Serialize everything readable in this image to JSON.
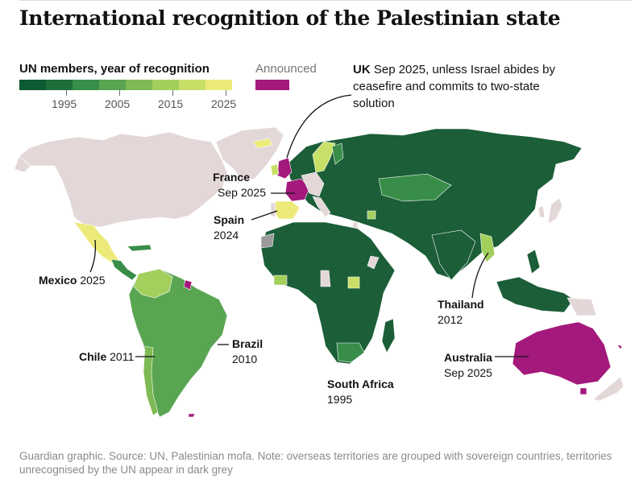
{
  "title": "International recognition of the Palestinian state",
  "legend": {
    "title": "UN members, year of recognition",
    "swatch_colors": [
      "#0e5a32",
      "#1e6e3c",
      "#388e48",
      "#5aa552",
      "#7dba54",
      "#a3cf5d",
      "#c9e068",
      "#eceb79"
    ],
    "tick_labels": [
      "1995",
      "2005",
      "2015",
      "2025"
    ],
    "announced_label": "Announced",
    "announced_color": "#a3197c"
  },
  "colors": {
    "not_recognised": "#e3d7d8",
    "unrecognised_territory": "#9a9a9a",
    "old_recognition": "#1b5e38",
    "announced": "#a3197c"
  },
  "uk_note": {
    "country": "UK",
    "text": "Sep 2025, unless Israel abides by ceasefire and commits to two-state solution"
  },
  "annotations": {
    "france": {
      "name": "France",
      "detail": "Sep 2025"
    },
    "spain": {
      "name": "Spain",
      "detail": "2024"
    },
    "mexico": {
      "name": "Mexico",
      "detail": "2025"
    },
    "chile": {
      "name": "Chile",
      "detail": "2011"
    },
    "brazil": {
      "name": "Brazil",
      "detail": "2010"
    },
    "south_africa": {
      "name": "South Africa",
      "detail": "1995"
    },
    "thailand": {
      "name": "Thailand",
      "detail": "2012"
    },
    "australia": {
      "name": "Australia",
      "detail": "Sep 2025"
    }
  },
  "footer": "Guardian graphic. Source: UN, Palestinian mofa. Note: overseas territories are grouped with sovereign countries, territories unrecognised by the UN appear in dark grey"
}
